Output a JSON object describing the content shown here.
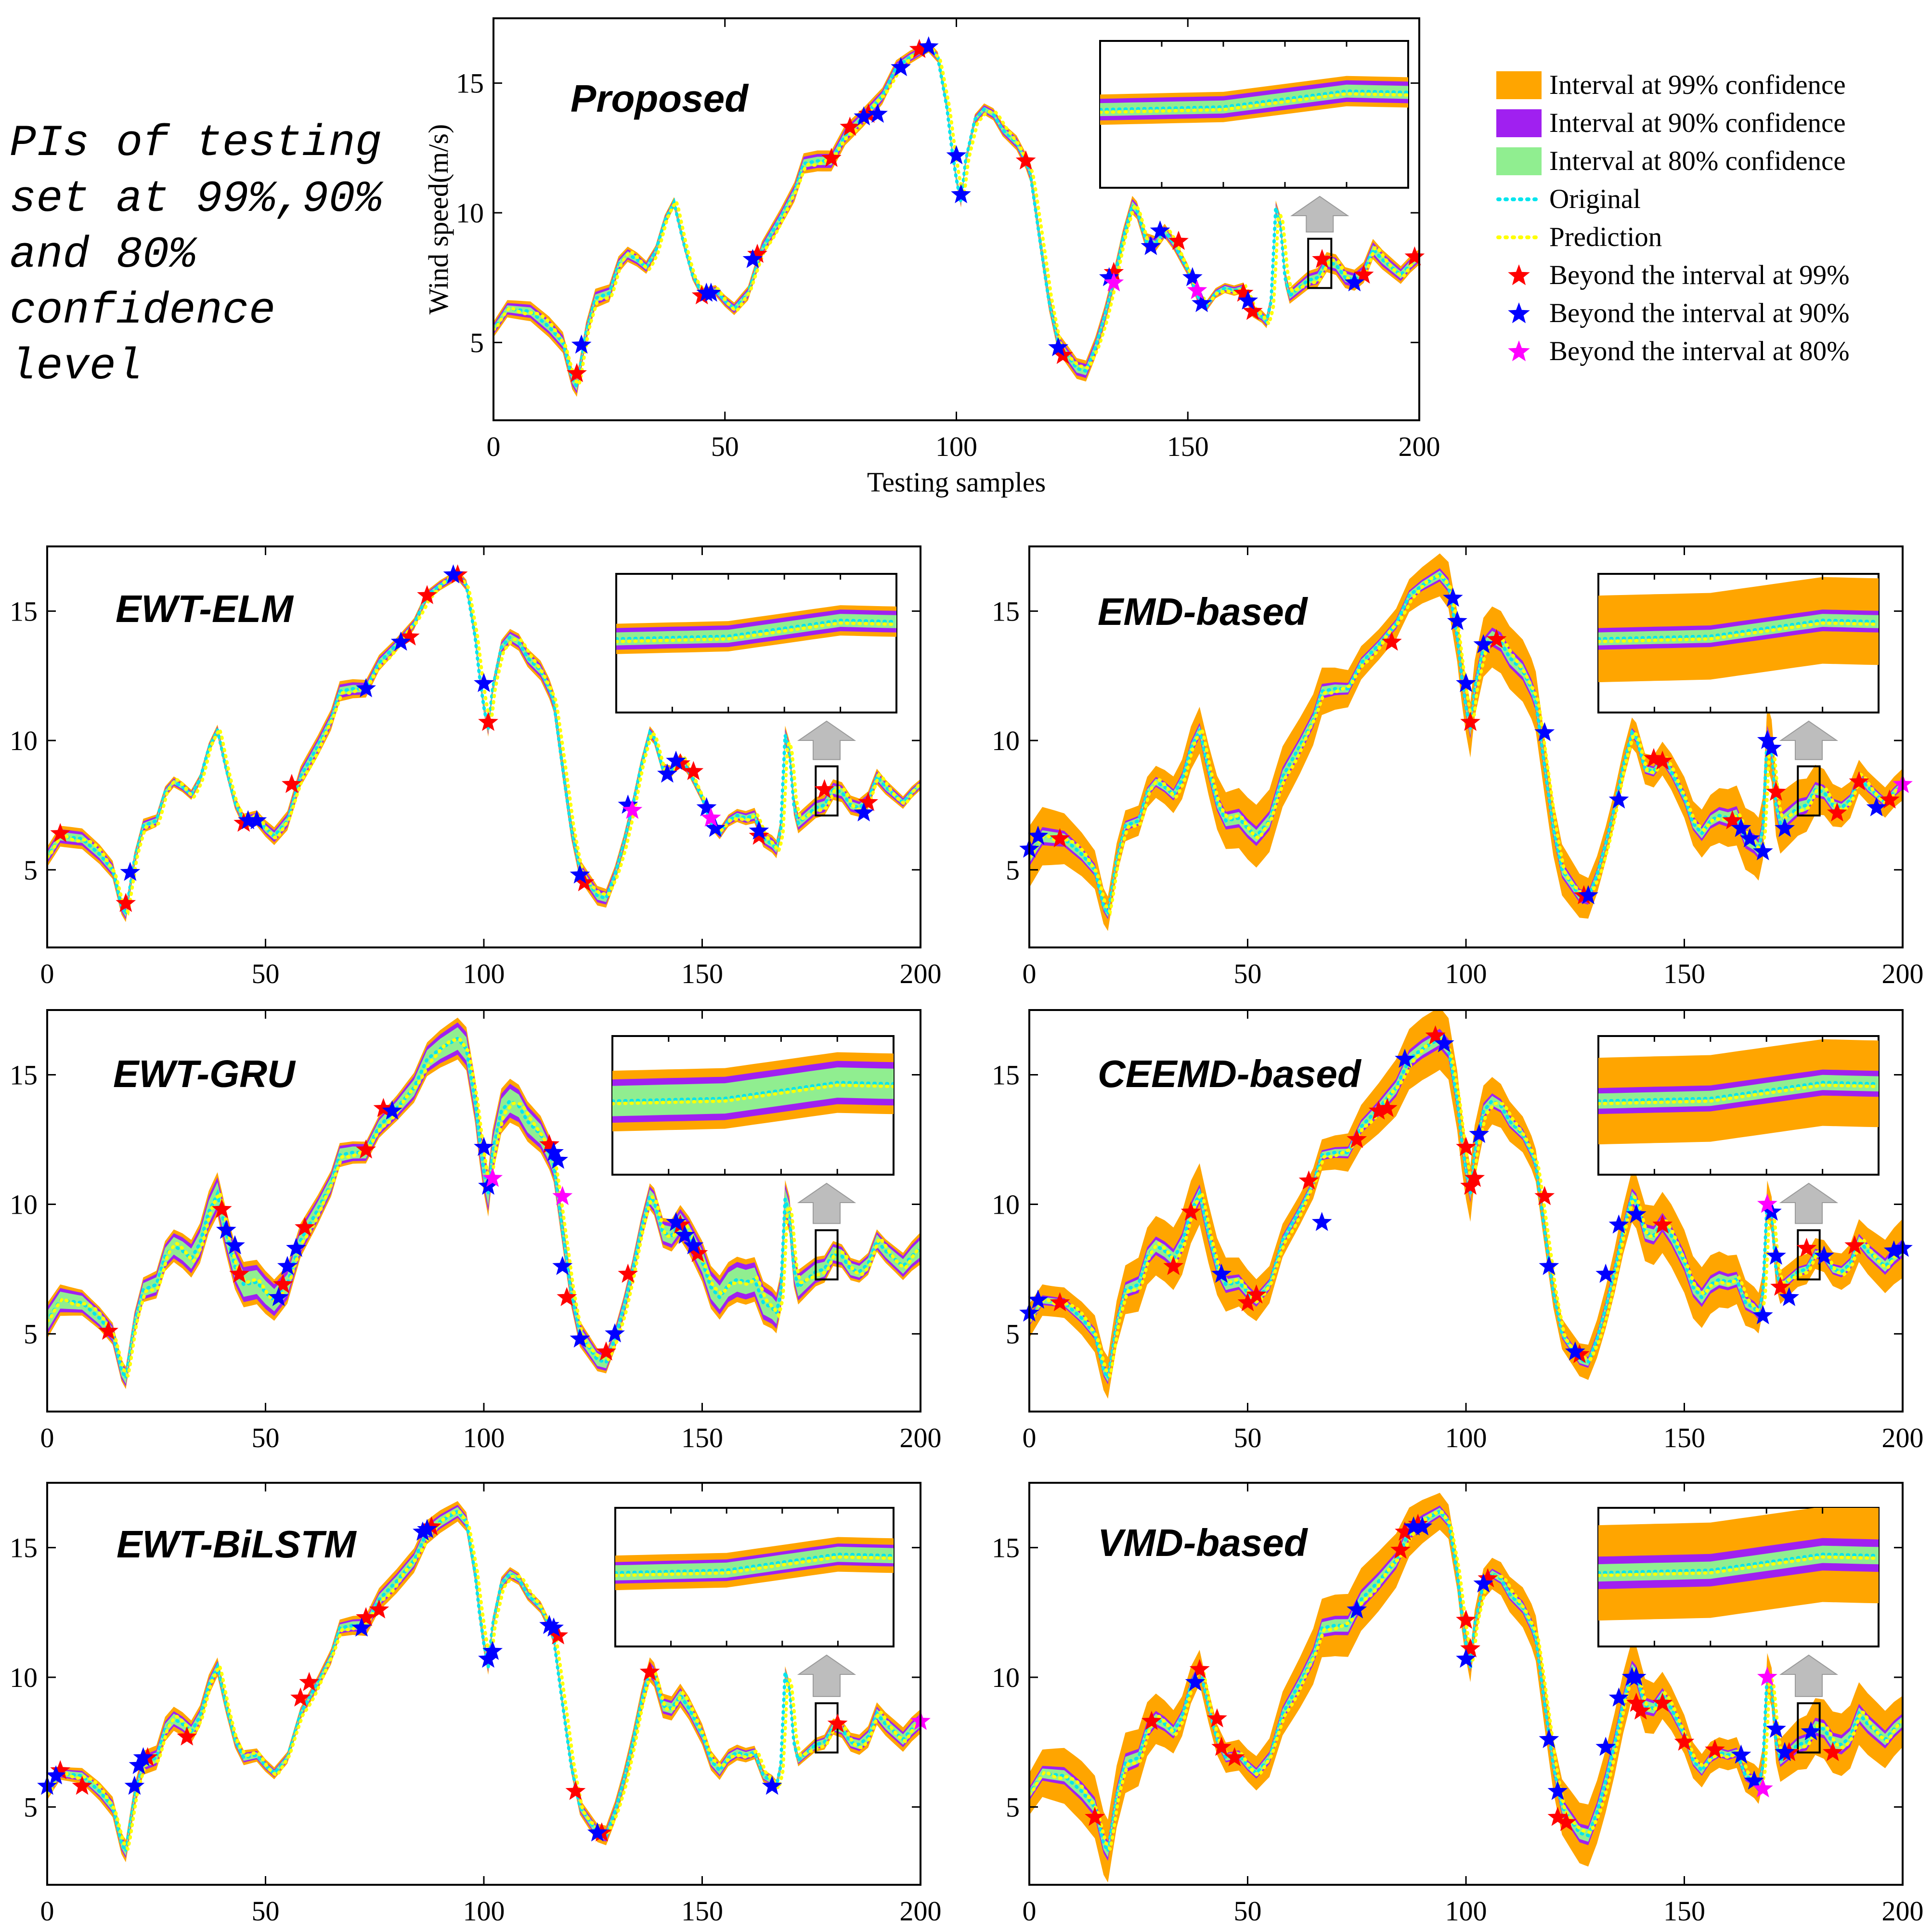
{
  "side_note": "PIs of testing set at 99%,90% and 80% confidence level",
  "legend": [
    {
      "label": "Interval at 99% confidence",
      "kind": "patch",
      "color": "#FFA500"
    },
    {
      "label": "Interval at 90% confidence",
      "kind": "patch",
      "color": "#A020F0"
    },
    {
      "label": "Interval at 80% confidence",
      "kind": "patch",
      "color": "#90EE90"
    },
    {
      "label": "Original",
      "kind": "dotline",
      "color": "#00E5EE"
    },
    {
      "label": "Prediction",
      "kind": "dotline",
      "color": "#FFFF00"
    },
    {
      "label": "Beyond the interval at 99%",
      "kind": "star",
      "color": "#FF0000"
    },
    {
      "label": "Beyond the interval at 90%",
      "kind": "star",
      "color": "#0000FF"
    },
    {
      "label": "Beyond the interval at 80%",
      "kind": "star",
      "color": "#FF00FF"
    }
  ],
  "chart_data": [
    {
      "type": "line",
      "id": "proposed",
      "title": "Proposed",
      "xlabel": "Testing samples",
      "ylabel": "Wind speed(m/s)",
      "xlim": [
        0,
        200
      ],
      "ylim": [
        2,
        17.5
      ],
      "xticks": [
        0,
        50,
        100,
        150,
        200
      ],
      "yticks": [
        5,
        10,
        15
      ],
      "band_halfwidths": {
        "ci99": 0.3,
        "ci90": 0.2,
        "ci80": 0.12
      },
      "inset_band_halfwidths": {
        "ci99": 0.7,
        "ci90": 0.5,
        "ci80": 0.3
      },
      "zoom_range": [
        176,
        181
      ],
      "exceed99": [
        [
          18,
          3.8
        ],
        [
          45,
          6.8
        ],
        [
          57,
          8.4
        ],
        [
          73,
          12.1
        ],
        [
          77,
          13.3
        ],
        [
          81,
          13.8
        ],
        [
          92,
          16.3
        ],
        [
          115,
          12.0
        ],
        [
          123,
          4.5
        ],
        [
          134,
          7.7
        ],
        [
          148,
          8.9
        ],
        [
          162,
          6.9
        ],
        [
          164,
          6.2
        ],
        [
          179,
          8.2
        ],
        [
          188,
          7.6
        ],
        [
          199,
          8.3
        ]
      ],
      "exceed90": [
        [
          19,
          4.9
        ],
        [
          46,
          6.9
        ],
        [
          47,
          6.9
        ],
        [
          56,
          8.2
        ],
        [
          80,
          13.7
        ],
        [
          83,
          13.8
        ],
        [
          88,
          15.6
        ],
        [
          94,
          16.4
        ],
        [
          100,
          12.2
        ],
        [
          101,
          10.7
        ],
        [
          122,
          4.8
        ],
        [
          133,
          7.5
        ],
        [
          142,
          8.7
        ],
        [
          144,
          9.3
        ],
        [
          151,
          7.5
        ],
        [
          153,
          6.5
        ],
        [
          163,
          6.6
        ],
        [
          186,
          7.3
        ]
      ],
      "exceed80": [
        [
          134,
          7.3
        ],
        [
          152,
          7.0
        ]
      ]
    },
    {
      "type": "line",
      "id": "ewt-elm",
      "title": "EWT-ELM",
      "xlabel": "",
      "ylabel": "",
      "xlim": [
        0,
        200
      ],
      "ylim": [
        2,
        17.5
      ],
      "xticks": [
        0,
        50,
        100,
        150,
        200
      ],
      "yticks": [
        5,
        10,
        15
      ],
      "band_halfwidths": {
        "ci99": 0.3,
        "ci90": 0.2,
        "ci80": 0.12
      },
      "inset_band_halfwidths": {
        "ci99": 0.7,
        "ci90": 0.5,
        "ci80": 0.3
      },
      "zoom_range": [
        176,
        181
      ],
      "exceed99": [
        [
          3,
          6.4
        ],
        [
          18,
          3.7
        ],
        [
          45,
          6.8
        ],
        [
          56,
          8.3
        ],
        [
          83,
          14.0
        ],
        [
          87,
          15.6
        ],
        [
          94,
          16.4
        ],
        [
          101,
          10.7
        ],
        [
          123,
          4.5
        ],
        [
          145,
          9.1
        ],
        [
          148,
          8.8
        ],
        [
          163,
          6.3
        ],
        [
          178,
          8.1
        ],
        [
          188,
          7.6
        ]
      ],
      "exceed90": [
        [
          19,
          4.9
        ],
        [
          46,
          6.9
        ],
        [
          48,
          6.9
        ],
        [
          73,
          12.0
        ],
        [
          81,
          13.8
        ],
        [
          93,
          16.4
        ],
        [
          100,
          12.2
        ],
        [
          122,
          4.8
        ],
        [
          133,
          7.5
        ],
        [
          142,
          8.7
        ],
        [
          144,
          9.2
        ],
        [
          151,
          7.4
        ],
        [
          153,
          6.6
        ],
        [
          163,
          6.5
        ],
        [
          187,
          7.2
        ]
      ],
      "exceed80": [
        [
          134,
          7.3
        ],
        [
          152,
          7.0
        ]
      ]
    },
    {
      "type": "line",
      "id": "emd-based",
      "title": "EMD-based",
      "xlabel": "",
      "ylabel": "",
      "xlim": [
        0,
        200
      ],
      "ylim": [
        2,
        17.5
      ],
      "xticks": [
        0,
        50,
        100,
        150,
        200
      ],
      "yticks": [
        5,
        10,
        15
      ],
      "band_halfwidths": {
        "ci99": 0.9,
        "ci90": 0.28,
        "ci80": 0.18
      },
      "inset_band_halfwidths": {
        "ci99": 2.0,
        "ci90": 0.5,
        "ci80": 0.3
      },
      "zoom_range": [
        176,
        181
      ],
      "exceed99": [
        [
          7,
          6.2
        ],
        [
          83,
          13.8
        ],
        [
          107,
          13.9
        ],
        [
          101,
          10.7
        ],
        [
          127,
          4.0
        ],
        [
          143,
          9.3
        ],
        [
          145,
          9.2
        ],
        [
          161,
          6.9
        ],
        [
          171,
          8.0
        ],
        [
          185,
          7.2
        ],
        [
          190,
          8.4
        ],
        [
          197,
          7.7
        ]
      ],
      "exceed90": [
        [
          0,
          5.8
        ],
        [
          2,
          6.3
        ],
        [
          97,
          15.5
        ],
        [
          98,
          14.6
        ],
        [
          100,
          12.2
        ],
        [
          104,
          13.7
        ],
        [
          118,
          10.3
        ],
        [
          128,
          4.0
        ],
        [
          135,
          7.7
        ],
        [
          163,
          6.6
        ],
        [
          165,
          6.2
        ],
        [
          168,
          5.7
        ],
        [
          169,
          10.0
        ],
        [
          170,
          9.7
        ],
        [
          173,
          6.6
        ],
        [
          194,
          7.4
        ]
      ],
      "exceed80": [
        [
          200,
          8.3
        ]
      ]
    },
    {
      "type": "line",
      "id": "ewt-gru",
      "title": "EWT-GRU",
      "xlabel": "",
      "ylabel": "",
      "xlim": [
        0,
        200
      ],
      "ylim": [
        2,
        17.5
      ],
      "xticks": [
        0,
        50,
        100,
        150,
        200
      ],
      "yticks": [
        5,
        10,
        15
      ],
      "band_halfwidths": {
        "ci99": 0.65,
        "ci90": 0.5,
        "ci80": 0.35
      },
      "inset_band_halfwidths": {
        "ci99": 1.4,
        "ci90": 1.0,
        "ci80": 0.7
      },
      "zoom_range": [
        176,
        181
      ],
      "exceed99": [
        [
          14,
          5.1
        ],
        [
          40,
          9.8
        ],
        [
          44,
          7.3
        ],
        [
          54,
          6.9
        ],
        [
          59,
          9.1
        ],
        [
          73,
          12.1
        ],
        [
          77,
          13.7
        ],
        [
          115,
          12.3
        ],
        [
          119,
          6.4
        ],
        [
          128,
          4.3
        ],
        [
          133,
          7.3
        ],
        [
          145,
          9.2
        ],
        [
          149,
          8.1
        ]
      ],
      "exceed90": [
        [
          41,
          9.0
        ],
        [
          43,
          8.4
        ],
        [
          53,
          6.4
        ],
        [
          55,
          7.6
        ],
        [
          57,
          8.3
        ],
        [
          79,
          13.6
        ],
        [
          100,
          12.2
        ],
        [
          101,
          10.7
        ],
        [
          116,
          12.0
        ],
        [
          117,
          11.7
        ],
        [
          118,
          7.6
        ],
        [
          122,
          4.8
        ],
        [
          130,
          5.0
        ],
        [
          144,
          9.3
        ],
        [
          146,
          8.8
        ],
        [
          148,
          8.4
        ]
      ],
      "exceed80": [
        [
          102,
          11.0
        ],
        [
          118,
          10.3
        ]
      ]
    },
    {
      "type": "line",
      "id": "ceemd-based",
      "title": "CEEMD-based",
      "xlabel": "",
      "ylabel": "",
      "xlim": [
        0,
        200
      ],
      "ylim": [
        2,
        17.5
      ],
      "xticks": [
        0,
        50,
        100,
        150,
        200
      ],
      "yticks": [
        5,
        10,
        15
      ],
      "band_halfwidths": {
        "ci99": 0.9,
        "ci90": 0.28,
        "ci80": 0.18
      },
      "inset_band_halfwidths": {
        "ci99": 2.0,
        "ci90": 0.6,
        "ci80": 0.35
      },
      "zoom_range": [
        176,
        181
      ],
      "exceed99": [
        [
          7,
          6.2
        ],
        [
          33,
          7.6
        ],
        [
          37,
          9.7
        ],
        [
          50,
          6.2
        ],
        [
          52,
          6.5
        ],
        [
          64,
          10.9
        ],
        [
          75,
          12.5
        ],
        [
          80,
          13.6
        ],
        [
          82,
          13.7
        ],
        [
          93,
          16.5
        ],
        [
          100,
          12.2
        ],
        [
          101,
          10.7
        ],
        [
          102,
          11.0
        ],
        [
          118,
          10.3
        ],
        [
          126,
          4.2
        ],
        [
          145,
          9.2
        ],
        [
          172,
          6.8
        ],
        [
          178,
          8.3
        ],
        [
          189,
          8.4
        ]
      ],
      "exceed90": [
        [
          0,
          5.8
        ],
        [
          2,
          6.3
        ],
        [
          44,
          7.3
        ],
        [
          67,
          9.3
        ],
        [
          86,
          15.6
        ],
        [
          95,
          16.2
        ],
        [
          103,
          12.7
        ],
        [
          119,
          7.6
        ],
        [
          125,
          4.3
        ],
        [
          132,
          7.3
        ],
        [
          135,
          9.2
        ],
        [
          139,
          9.6
        ],
        [
          168,
          5.7
        ],
        [
          170,
          9.7
        ],
        [
          171,
          8.0
        ],
        [
          174,
          6.4
        ],
        [
          182,
          8.0
        ],
        [
          198,
          8.2
        ],
        [
          200,
          8.3
        ]
      ],
      "exceed80": [
        [
          169,
          10.0
        ]
      ]
    },
    {
      "type": "line",
      "id": "ewt-bilstm",
      "title": "EWT-BiLSTM",
      "xlabel": "",
      "ylabel": "",
      "xlim": [
        0,
        200
      ],
      "ylim": [
        2,
        17.5
      ],
      "xticks": [
        0,
        50,
        100,
        150,
        200
      ],
      "yticks": [
        5,
        10,
        15
      ],
      "band_halfwidths": {
        "ci99": 0.35,
        "ci90": 0.22,
        "ci80": 0.15
      },
      "inset_band_halfwidths": {
        "ci99": 0.8,
        "ci90": 0.5,
        "ci80": 0.35
      },
      "zoom_range": [
        176,
        181
      ],
      "exceed99": [
        [
          3,
          6.4
        ],
        [
          8,
          5.8
        ],
        [
          23,
          6.9
        ],
        [
          32,
          7.7
        ],
        [
          58,
          9.2
        ],
        [
          60,
          9.8
        ],
        [
          73,
          12.3
        ],
        [
          76,
          12.6
        ],
        [
          88,
          15.8
        ],
        [
          117,
          11.6
        ],
        [
          121,
          5.6
        ],
        [
          127,
          4.0
        ],
        [
          138,
          10.2
        ],
        [
          181,
          8.2
        ]
      ],
      "exceed90": [
        [
          0,
          5.8
        ],
        [
          2,
          6.2
        ],
        [
          20,
          5.8
        ],
        [
          21,
          6.6
        ],
        [
          22,
          6.9
        ],
        [
          72,
          11.9
        ],
        [
          86,
          15.6
        ],
        [
          87,
          15.7
        ],
        [
          101,
          10.7
        ],
        [
          102,
          11.0
        ],
        [
          115,
          12.0
        ],
        [
          116,
          11.9
        ],
        [
          126,
          4.0
        ],
        [
          166,
          5.8
        ]
      ],
      "exceed80": [
        [
          200,
          8.3
        ]
      ]
    },
    {
      "type": "line",
      "id": "vmd-based",
      "title": "VMD-based",
      "xlabel": "",
      "ylabel": "",
      "xlim": [
        0,
        200
      ],
      "ylim": [
        2,
        17.5
      ],
      "xticks": [
        0,
        50,
        100,
        150,
        200
      ],
      "yticks": [
        5,
        10,
        15
      ],
      "band_halfwidths": {
        "ci99": 0.9,
        "ci90": 0.28,
        "ci80": 0.18
      },
      "inset_band_halfwidths": {
        "ci99": 2.2,
        "ci90": 0.75,
        "ci80": 0.4
      },
      "zoom_range": [
        176,
        181
      ],
      "exceed99": [
        [
          15,
          4.6
        ],
        [
          28,
          8.3
        ],
        [
          39,
          10.3
        ],
        [
          43,
          8.4
        ],
        [
          44,
          7.3
        ],
        [
          47,
          6.9
        ],
        [
          85,
          14.9
        ],
        [
          86,
          15.6
        ],
        [
          89,
          15.9
        ],
        [
          100,
          12.2
        ],
        [
          101,
          11.1
        ],
        [
          105,
          13.8
        ],
        [
          121,
          4.6
        ],
        [
          123,
          4.4
        ],
        [
          139,
          9.0
        ],
        [
          140,
          8.7
        ],
        [
          145,
          9.0
        ],
        [
          150,
          7.5
        ],
        [
          157,
          7.2
        ],
        [
          174,
          7.1
        ],
        [
          184,
          7.1
        ]
      ],
      "exceed90": [
        [
          38,
          9.8
        ],
        [
          75,
          12.6
        ],
        [
          88,
          15.8
        ],
        [
          90,
          15.8
        ],
        [
          100,
          10.7
        ],
        [
          104,
          13.6
        ],
        [
          119,
          7.6
        ],
        [
          121,
          5.6
        ],
        [
          132,
          7.3
        ],
        [
          135,
          9.2
        ],
        [
          138,
          10.0
        ],
        [
          139,
          10.0
        ],
        [
          163,
          7.0
        ],
        [
          166,
          6.0
        ],
        [
          171,
          8.0
        ],
        [
          173,
          7.1
        ],
        [
          179,
          7.9
        ]
      ],
      "exceed80": [
        [
          169,
          10.0
        ],
        [
          168,
          5.7
        ]
      ]
    }
  ]
}
